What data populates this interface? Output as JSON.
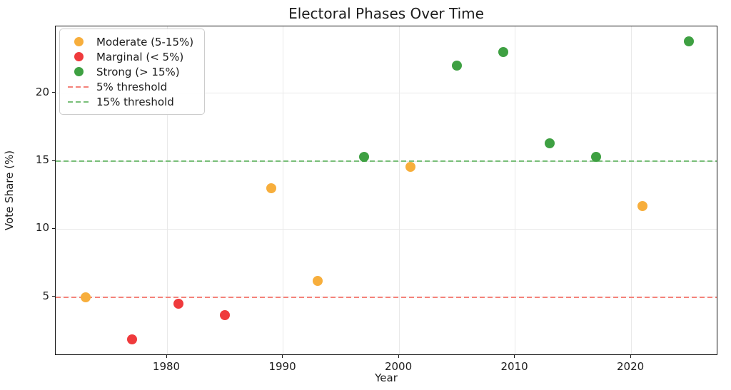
{
  "chart_data": {
    "type": "scatter",
    "title": "Electoral Phases Over Time",
    "xlabel": "Year",
    "ylabel": "Vote Share (%)",
    "xlim": [
      1970.4,
      2027.5
    ],
    "ylim": [
      0.7,
      24.9
    ],
    "x_ticks": [
      1980,
      1990,
      2000,
      2010,
      2020
    ],
    "y_ticks": [
      5,
      10,
      15,
      20
    ],
    "grid": true,
    "legend_position": "upper-left",
    "series": [
      {
        "name": "Moderate (5-15%)",
        "color": "#F7AE3C",
        "points": [
          [
            1973,
            5.0
          ],
          [
            1989,
            13.0
          ],
          [
            1993,
            6.2
          ],
          [
            2001,
            14.6
          ],
          [
            2021,
            11.7
          ]
        ]
      },
      {
        "name": "Marginal (< 5%)",
        "color": "#EF3A3C",
        "points": [
          [
            1977,
            1.9
          ],
          [
            1981,
            4.5
          ],
          [
            1985,
            3.7
          ]
        ]
      },
      {
        "name": "Strong (> 15%)",
        "color": "#3EA042",
        "points": [
          [
            1997,
            15.3
          ],
          [
            2005,
            22.0
          ],
          [
            2009,
            23.0
          ],
          [
            2013,
            16.3
          ],
          [
            2017,
            15.3
          ],
          [
            2025,
            23.8
          ]
        ]
      }
    ],
    "thresholds": [
      {
        "name": "5% threshold",
        "value": 5,
        "color": "#F4827A"
      },
      {
        "name": "15% threshold",
        "value": 15,
        "color": "#79BF79"
      }
    ]
  }
}
